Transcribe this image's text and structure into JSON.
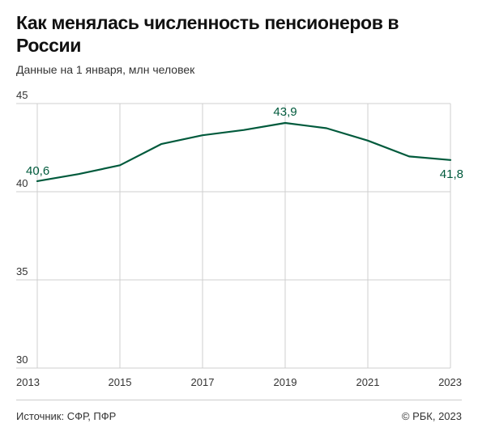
{
  "header": {
    "title": "Как менялась численность пенсионеров в России",
    "subtitle": "Данные на 1 января, млн человек"
  },
  "footer": {
    "source": "Источник: СФР, ПФР",
    "copyright": "© РБК, 2023"
  },
  "colors": {
    "line": "#005a3c",
    "grid": "#cfcfcf"
  },
  "chart_data": {
    "type": "line",
    "title": "Как менялась численность пенсионеров в России",
    "subtitle": "Данные на 1 января, млн человек",
    "x": [
      2013,
      2014,
      2015,
      2016,
      2017,
      2018,
      2019,
      2020,
      2021,
      2022,
      2023
    ],
    "series": [
      {
        "values": [
          40.6,
          41.0,
          41.5,
          42.7,
          43.2,
          43.5,
          43.9,
          43.6,
          42.9,
          42.0,
          41.8
        ]
      }
    ],
    "xlim": [
      2013,
      2023
    ],
    "ylim": [
      30,
      45
    ],
    "x_ticks": [
      2013,
      2015,
      2017,
      2019,
      2021,
      2023
    ],
    "x_tick_labels": [
      "2013",
      "2015",
      "2017",
      "2019",
      "2021",
      "2023"
    ],
    "y_ticks": [
      30,
      35,
      40,
      45
    ],
    "y_tick_labels": [
      "30",
      "35",
      "40",
      "45"
    ],
    "data_labels": [
      {
        "x": 2013,
        "text": "40,6"
      },
      {
        "x": 2019,
        "text": "43,9"
      },
      {
        "x": 2023,
        "text": "41,8"
      }
    ],
    "grid": true,
    "legend": "none"
  }
}
